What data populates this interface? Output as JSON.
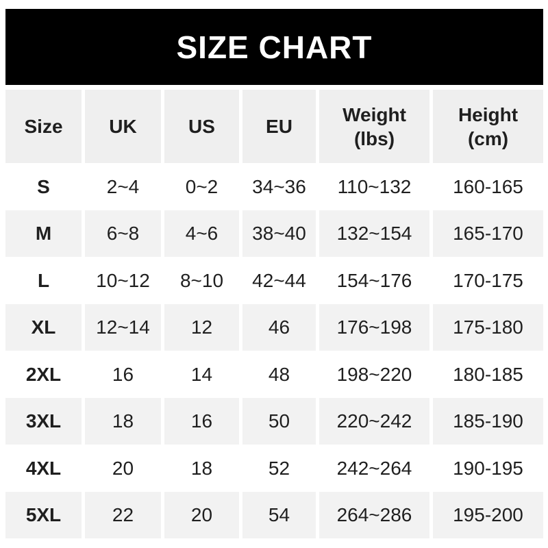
{
  "banner": {
    "title": "SIZE CHART"
  },
  "colors": {
    "banner_bg": "#000000",
    "banner_text": "#ffffff",
    "header_row_bg": "#efefef",
    "stripe_row_bg": "#f2f2f2",
    "text": "#1f1f1f",
    "page_bg": "#ffffff"
  },
  "table": {
    "columns": [
      {
        "label": "Size"
      },
      {
        "label": "UK"
      },
      {
        "label": "US"
      },
      {
        "label": "EU"
      },
      {
        "label": "Weight",
        "sub": "(lbs)"
      },
      {
        "label": "Height",
        "sub": "(cm)"
      }
    ],
    "rows": [
      {
        "size": "S",
        "uk": "2~4",
        "us": "0~2",
        "eu": "34~36",
        "weight": "110~132",
        "height": "160-165"
      },
      {
        "size": "M",
        "uk": "6~8",
        "us": "4~6",
        "eu": "38~40",
        "weight": "132~154",
        "height": "165-170"
      },
      {
        "size": "L",
        "uk": "10~12",
        "us": "8~10",
        "eu": "42~44",
        "weight": "154~176",
        "height": "170-175"
      },
      {
        "size": "XL",
        "uk": "12~14",
        "us": "12",
        "eu": "46",
        "weight": "176~198",
        "height": "175-180"
      },
      {
        "size": "2XL",
        "uk": "16",
        "us": "14",
        "eu": "48",
        "weight": "198~220",
        "height": "180-185"
      },
      {
        "size": "3XL",
        "uk": "18",
        "us": "16",
        "eu": "50",
        "weight": "220~242",
        "height": "185-190"
      },
      {
        "size": "4XL",
        "uk": "20",
        "us": "18",
        "eu": "52",
        "weight": "242~264",
        "height": "190-195"
      },
      {
        "size": "5XL",
        "uk": "22",
        "us": "20",
        "eu": "54",
        "weight": "264~286",
        "height": "195-200"
      }
    ]
  }
}
